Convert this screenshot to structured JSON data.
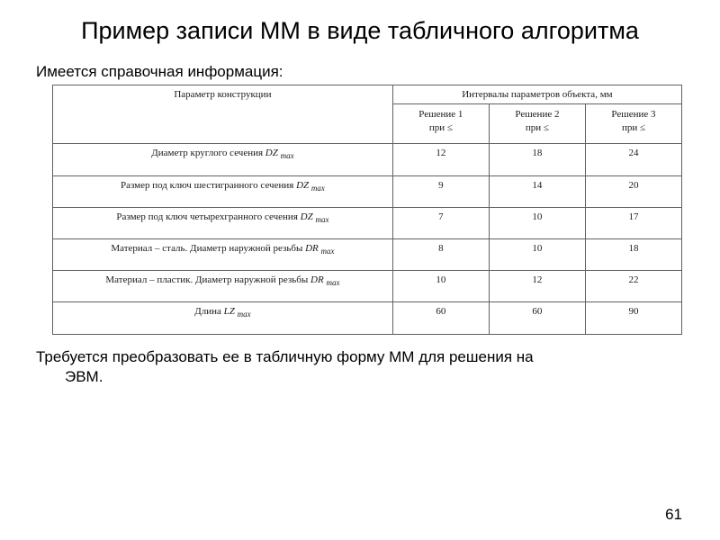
{
  "title": "Пример записи ММ в виде табличного алгоритма",
  "intro": "Имеется справочная информация:",
  "table": {
    "header_param": "Параметр конструкции",
    "header_interval": "Интервалы параметров объекта, мм",
    "sol1_label": "Решение 1",
    "sol2_label": "Решение 2",
    "sol3_label": "Решение 3",
    "cond_label": "при ≤",
    "rows": [
      {
        "param_prefix": "Диаметр круглого сечения ",
        "var": "DZ",
        "sub": "max",
        "v1": "12",
        "v2": "18",
        "v3": "24"
      },
      {
        "param_prefix": "Размер под ключ шестигранного сечения ",
        "var": "DZ",
        "sub": "max",
        "v1": "9",
        "v2": "14",
        "v3": "20"
      },
      {
        "param_prefix": "Размер под ключ четырехгранного сечения ",
        "var": "DZ",
        "sub": "max",
        "v1": "7",
        "v2": "10",
        "v3": "17"
      },
      {
        "param_prefix": "Материал – сталь. Диаметр наружной резьбы ",
        "var": "DR",
        "sub": "max",
        "v1": "8",
        "v2": "10",
        "v3": "18"
      },
      {
        "param_prefix": "Материал – пластик. Диаметр наружной резьбы ",
        "var": "DR",
        "sub": "max",
        "v1": "10",
        "v2": "12",
        "v3": "22"
      },
      {
        "param_prefix": "Длина ",
        "var": "LZ",
        "sub": "max",
        "v1": "60",
        "v2": "60",
        "v3": "90"
      }
    ]
  },
  "outro_line1": "Требуется преобразовать ее в табличную форму ММ для решения на",
  "outro_line2": "ЭВМ.",
  "page_number": "61",
  "colors": {
    "bg": "#ffffff",
    "text": "#000000",
    "border": "#606060"
  }
}
